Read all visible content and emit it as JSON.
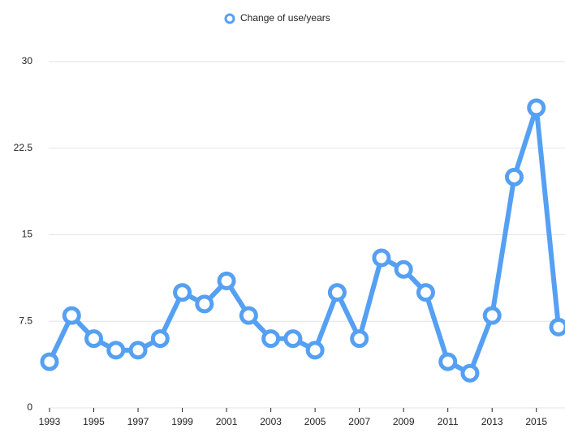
{
  "chart_data": {
    "type": "line",
    "x": [
      1993,
      1994,
      1995,
      1996,
      1997,
      1998,
      1999,
      2000,
      2001,
      2002,
      2003,
      2004,
      2005,
      2006,
      2007,
      2008,
      2009,
      2010,
      2011,
      2012,
      2013,
      2014,
      2015,
      2016
    ],
    "series": [
      {
        "name": "Change of use/years",
        "color": "#55a0f2",
        "values": [
          4,
          8,
          6,
          5,
          5,
          6,
          10,
          9,
          11,
          8,
          6,
          6,
          5,
          10,
          6,
          13,
          12,
          10,
          4,
          3,
          8,
          20,
          26,
          7
        ]
      }
    ],
    "xlim": [
      1993,
      2016
    ],
    "xticks": [
      1993,
      1995,
      1997,
      1999,
      2001,
      2003,
      2005,
      2007,
      2009,
      2011,
      2013,
      2015
    ],
    "ylim": [
      0,
      30
    ],
    "yticks": [
      0,
      7.5,
      15,
      22.5,
      30
    ],
    "grid": true,
    "legend": "top"
  }
}
